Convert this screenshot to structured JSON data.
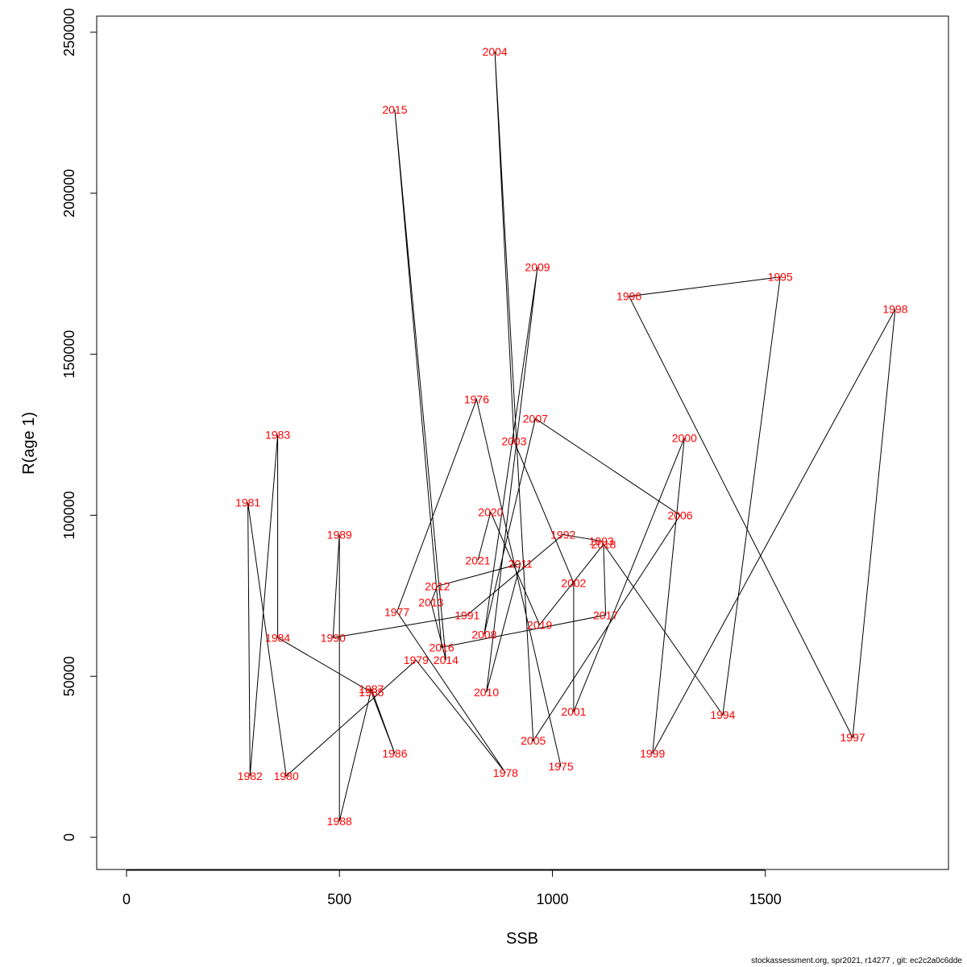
{
  "footer": "stockassessment.org, spr2021, r14277 , git: ec2c2a0c6dde",
  "chart_data": {
    "type": "line",
    "title": "",
    "xlabel": "SSB",
    "ylabel": "R(age 1)",
    "xlim": [
      -70,
      1930
    ],
    "ylim": [
      -10000,
      255000
    ],
    "xticks": [
      0,
      500,
      1000,
      1500
    ],
    "xtick_labels": [
      "0",
      "500",
      "1000",
      "1500"
    ],
    "yticks": [
      0,
      50000,
      100000,
      150000,
      200000,
      250000
    ],
    "ytick_labels": [
      "0",
      "50000",
      "100000",
      "150000",
      "200000",
      "250000"
    ],
    "grid": false,
    "line_color": "#000000",
    "label_color": "#ff0000",
    "points": [
      {
        "year": "1975",
        "ssb": 1020,
        "r": 22000
      },
      {
        "year": "1976",
        "ssb": 822,
        "r": 136000
      },
      {
        "year": "1977",
        "ssb": 635,
        "r": 70000
      },
      {
        "year": "1978",
        "ssb": 890,
        "r": 20000
      },
      {
        "year": "1979",
        "ssb": 680,
        "r": 55000
      },
      {
        "year": "1980",
        "ssb": 375,
        "r": 19000
      },
      {
        "year": "1981",
        "ssb": 285,
        "r": 104000
      },
      {
        "year": "1982",
        "ssb": 290,
        "r": 19000
      },
      {
        "year": "1983",
        "ssb": 355,
        "r": 125000
      },
      {
        "year": "1984",
        "ssb": 355,
        "r": 62000
      },
      {
        "year": "1985",
        "ssb": 575,
        "r": 45000
      },
      {
        "year": "1986",
        "ssb": 630,
        "r": 26000
      },
      {
        "year": "1987",
        "ssb": 575,
        "r": 46000
      },
      {
        "year": "1988",
        "ssb": 500,
        "r": 5000
      },
      {
        "year": "1989",
        "ssb": 500,
        "r": 94000
      },
      {
        "year": "1990",
        "ssb": 485,
        "r": 62000
      },
      {
        "year": "1991",
        "ssb": 800,
        "r": 69000
      },
      {
        "year": "1992",
        "ssb": 1025,
        "r": 94000
      },
      {
        "year": "1993",
        "ssb": 1115,
        "r": 92000
      },
      {
        "year": "1994",
        "ssb": 1400,
        "r": 38000
      },
      {
        "year": "1995",
        "ssb": 1535,
        "r": 174000
      },
      {
        "year": "1996",
        "ssb": 1180,
        "r": 168000
      },
      {
        "year": "1997",
        "ssb": 1705,
        "r": 31000
      },
      {
        "year": "1998",
        "ssb": 1805,
        "r": 164000
      },
      {
        "year": "1999",
        "ssb": 1235,
        "r": 26000
      },
      {
        "year": "2000",
        "ssb": 1310,
        "r": 124000
      },
      {
        "year": "2001",
        "ssb": 1050,
        "r": 39000
      },
      {
        "year": "2002",
        "ssb": 1050,
        "r": 79000
      },
      {
        "year": "2003",
        "ssb": 910,
        "r": 123000
      },
      {
        "year": "2004",
        "ssb": 865,
        "r": 244000
      },
      {
        "year": "2005",
        "ssb": 955,
        "r": 30000
      },
      {
        "year": "2006",
        "ssb": 1300,
        "r": 100000
      },
      {
        "year": "2007",
        "ssb": 960,
        "r": 130000
      },
      {
        "year": "2008",
        "ssb": 840,
        "r": 63000
      },
      {
        "year": "2009",
        "ssb": 965,
        "r": 177000
      },
      {
        "year": "2010",
        "ssb": 845,
        "r": 45000
      },
      {
        "year": "2011",
        "ssb": 925,
        "r": 85000
      },
      {
        "year": "2012",
        "ssb": 730,
        "r": 78000
      },
      {
        "year": "2013",
        "ssb": 715,
        "r": 73000
      },
      {
        "year": "2014",
        "ssb": 750,
        "r": 55000
      },
      {
        "year": "2015",
        "ssb": 630,
        "r": 226000
      },
      {
        "year": "2016",
        "ssb": 740,
        "r": 59000
      },
      {
        "year": "2017",
        "ssb": 1125,
        "r": 69000
      },
      {
        "year": "2018",
        "ssb": 1120,
        "r": 91000
      },
      {
        "year": "2019",
        "ssb": 970,
        "r": 66000
      },
      {
        "year": "2020",
        "ssb": 855,
        "r": 101000
      },
      {
        "year": "2021",
        "ssb": 825,
        "r": 86000
      }
    ]
  }
}
